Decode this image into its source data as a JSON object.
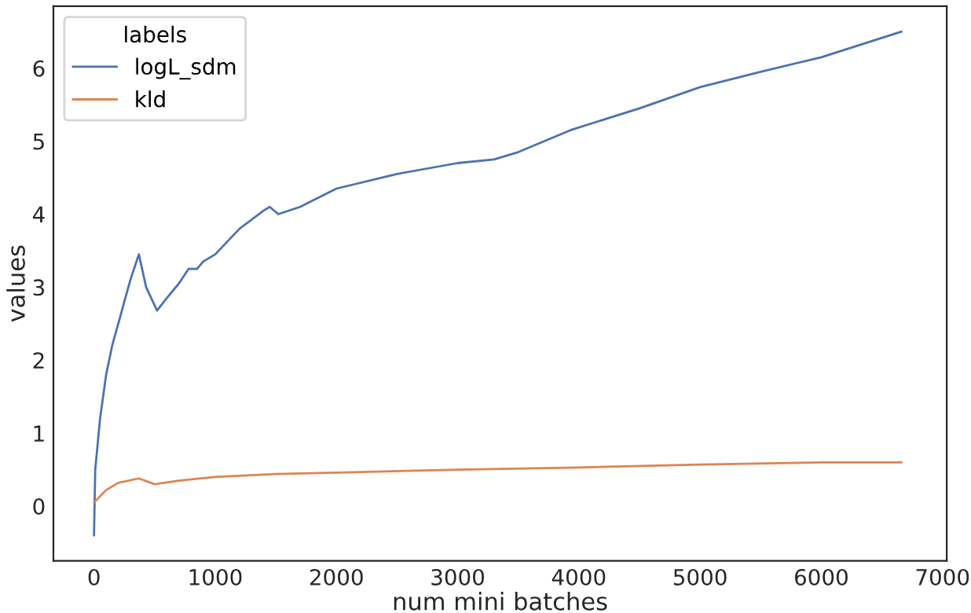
{
  "chart_data": {
    "type": "line",
    "xlabel": "num mini batches",
    "ylabel": "values",
    "legend_title": "labels",
    "legend": "top left",
    "grid": false,
    "xlim": [
      -335,
      7035
    ],
    "xticks": [
      0,
      1000,
      2000,
      3000,
      4000,
      5000,
      6000,
      7000
    ],
    "ylim": [
      -0.75,
      6.85
    ],
    "yticks": [
      0,
      1,
      2,
      3,
      4,
      5,
      6
    ],
    "series": [
      {
        "name": "logL_sdm",
        "color": "#4c72b0",
        "x": [
          0,
          10,
          50,
          100,
          150,
          200,
          250,
          300,
          370,
          430,
          520,
          600,
          700,
          780,
          850,
          900,
          1000,
          1200,
          1400,
          1450,
          1520,
          1700,
          2000,
          2500,
          3000,
          3300,
          3500,
          3930,
          4500,
          5000,
          5500,
          6000,
          6660
        ],
        "values": [
          -0.4,
          0.5,
          1.2,
          1.8,
          2.2,
          2.5,
          2.8,
          3.1,
          3.45,
          3.0,
          2.68,
          2.85,
          3.05,
          3.25,
          3.25,
          3.35,
          3.45,
          3.8,
          4.05,
          4.1,
          4.0,
          4.1,
          4.35,
          4.55,
          4.7,
          4.75,
          4.85,
          5.15,
          5.45,
          5.74,
          5.95,
          6.15,
          6.5
        ]
      },
      {
        "name": "kld",
        "color": "#dd8452",
        "x": [
          0,
          100,
          200,
          370,
          500,
          700,
          1000,
          1500,
          2000,
          3000,
          4000,
          5000,
          6000,
          6660
        ],
        "values": [
          0.05,
          0.22,
          0.32,
          0.38,
          0.3,
          0.35,
          0.4,
          0.44,
          0.46,
          0.5,
          0.53,
          0.57,
          0.6,
          0.6
        ]
      }
    ]
  }
}
